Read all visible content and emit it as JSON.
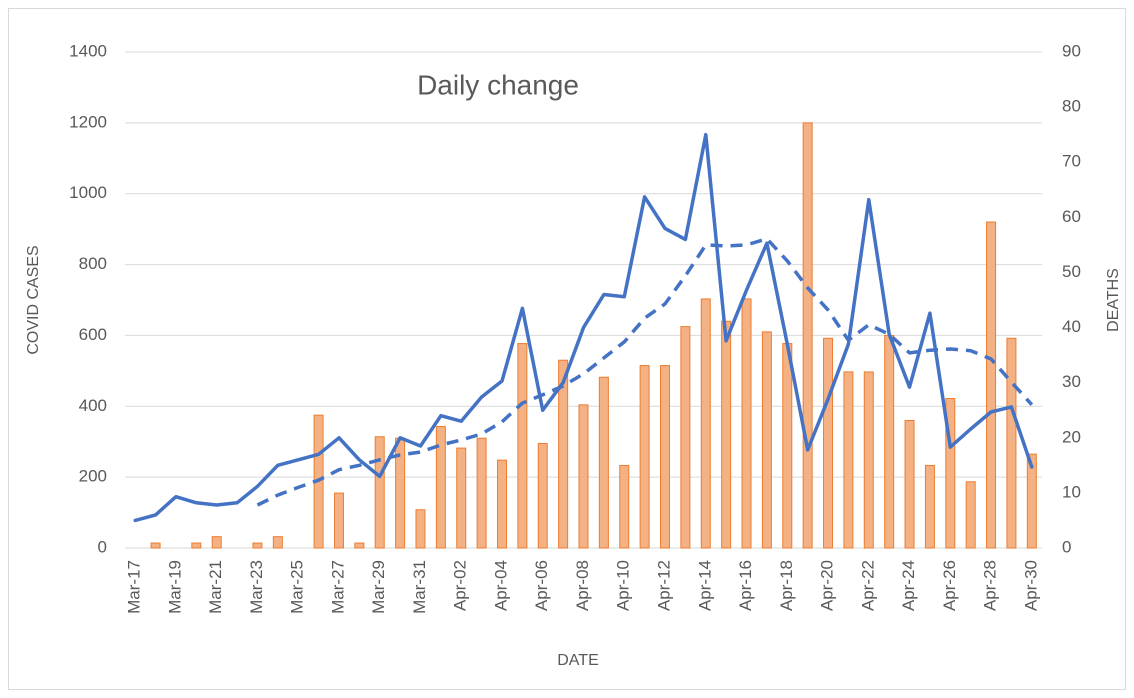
{
  "chart_data": {
    "type": "combo",
    "title": "Daily change",
    "xlabel": "DATE",
    "ylabel": "COVID CASES",
    "y2label": "DEATHS",
    "categories": [
      "Mar-17",
      null,
      "Mar-19",
      null,
      "Mar-21",
      null,
      "Mar-23",
      null,
      "Mar-25",
      null,
      "Mar-27",
      null,
      "Mar-29",
      null,
      "Mar-31",
      null,
      "Apr-02",
      null,
      "Apr-04",
      null,
      "Apr-06",
      null,
      "Apr-08",
      null,
      "Apr-10",
      null,
      "Apr-12",
      null,
      "Apr-14",
      null,
      "Apr-16",
      null,
      "Apr-18",
      null,
      "Apr-20",
      null,
      "Apr-22",
      null,
      "Apr-24",
      null,
      "Apr-26",
      null,
      "Apr-28",
      null,
      "Apr-30"
    ],
    "series": [
      {
        "type": "bar",
        "color": "#f4b183",
        "edge": "#ed7d31",
        "values": [
          0,
          14,
          0,
          14,
          32,
          0,
          14,
          32,
          0,
          375,
          155,
          14,
          314,
          310,
          108,
          343,
          282,
          310,
          248,
          577,
          295,
          530,
          404,
          482,
          233,
          515,
          515,
          625,
          703,
          640,
          703,
          610,
          577,
          1200,
          592,
          497,
          497,
          600,
          360,
          233,
          422,
          187,
          920,
          592,
          265
        ]
      },
      {
        "type": "line",
        "axis": "y2",
        "color": "#4472c4",
        "dashed": false,
        "values": [
          5,
          6,
          9.3,
          8.2,
          7.8,
          8.2,
          11.2,
          15,
          16,
          17,
          20,
          16,
          13,
          20,
          18.5,
          24,
          23,
          27.4,
          30.3,
          43.5,
          25,
          30,
          40,
          46,
          45.6,
          63.7,
          58,
          56,
          75,
          37.6,
          46.8,
          55.3,
          37,
          17.8,
          27,
          37,
          63.2,
          38.8,
          29.2,
          42.6,
          18.3,
          21.6,
          24.7,
          25.6,
          14.7
        ]
      },
      {
        "type": "line",
        "axis": "y2",
        "color": "#4472c4",
        "dashed": true,
        "values": [
          null,
          null,
          null,
          null,
          null,
          null,
          7.8,
          9.6,
          11,
          12.3,
          14.2,
          15,
          16,
          16.9,
          17.4,
          18.7,
          19.6,
          20.7,
          22.9,
          26.3,
          27.8,
          29.4,
          31.6,
          34.5,
          37.4,
          41.7,
          44.3,
          49.4,
          55,
          54.8,
          55,
          56.1,
          52.1,
          47.2,
          43.2,
          37.7,
          40.5,
          38.8,
          35.4,
          35.9,
          36.1,
          35.8,
          34.3,
          30.1,
          26
        ]
      }
    ],
    "ylim": [
      0,
      1400
    ],
    "yticks": [
      0,
      200,
      400,
      600,
      800,
      1000,
      1200,
      1400
    ],
    "y2lim": [
      0,
      90
    ],
    "y2ticks": [
      0,
      10,
      20,
      30,
      40,
      50,
      60,
      70,
      80,
      90
    ],
    "grid": true
  }
}
